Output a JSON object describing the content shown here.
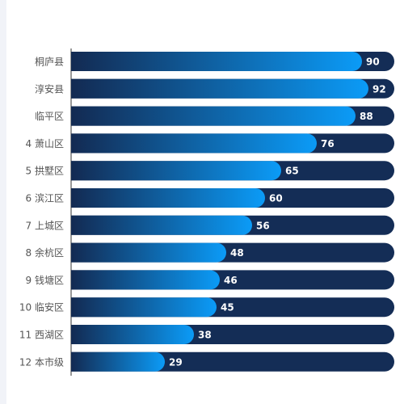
{
  "chart_data": {
    "type": "bar",
    "orientation": "horizontal",
    "categories": [
      "桐庐县",
      "淳安县",
      "临平区",
      "4 萧山区",
      "5 拱墅区",
      "6 滨江区",
      "7 上城区",
      "8 余杭区",
      "9 钱塘区",
      "10 临安区",
      "11 西湖区",
      "12 本市级"
    ],
    "values": [
      90,
      92,
      88,
      76,
      65,
      60,
      56,
      48,
      46,
      45,
      38,
      29
    ],
    "xlim": [
      0,
      100
    ],
    "data_labels": true,
    "grid": false,
    "legend": "none",
    "colors": {
      "track": "#142d56",
      "gradient_start": "#132a52",
      "gradient_end": "#0b9bf7",
      "label_text": "#ffffff",
      "category_text": "#555555",
      "axis_line": "#333333"
    }
  }
}
